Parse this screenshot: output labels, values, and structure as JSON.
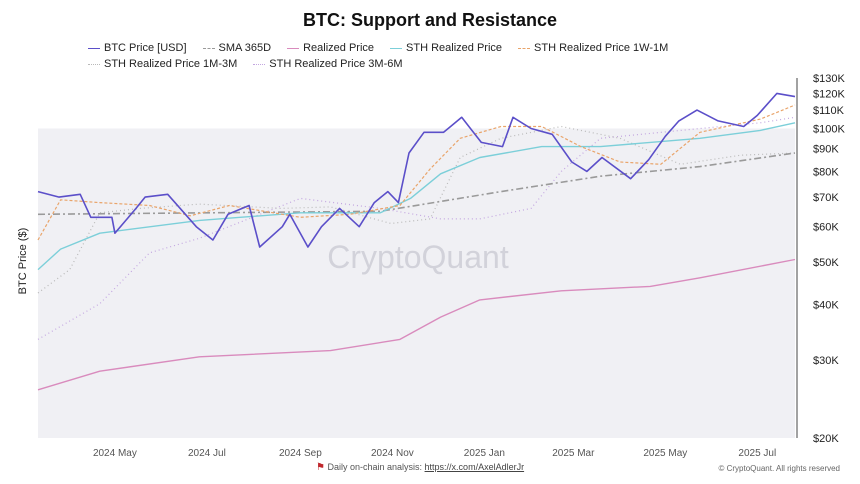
{
  "chart_data": {
    "type": "line",
    "title": "BTC: Support and Resistance",
    "ylabel": "BTC Price ($)",
    "yscale": "log",
    "ylim": [
      20000,
      130000
    ],
    "xlim": [
      "2024-03-11",
      "2025-07-26"
    ],
    "yticks": [
      20000,
      30000,
      40000,
      50000,
      60000,
      70000,
      80000,
      90000,
      100000,
      110000,
      120000,
      130000
    ],
    "ytick_labels": [
      "$20K",
      "$30K",
      "$40K",
      "$50K",
      "$60K",
      "$70K",
      "$80K",
      "$90K",
      "$100K",
      "$110K",
      "$120K",
      "$130K"
    ],
    "xticks": [
      "2024-05-01",
      "2024-07-01",
      "2024-09-01",
      "2024-11-01",
      "2025-01-01",
      "2025-03-01",
      "2025-05-01",
      "2025-07-01"
    ],
    "xtick_labels": [
      "2024 May",
      "2024 Jul",
      "2024 Sep",
      "2024 Nov",
      "2025 Jan",
      "2025 Mar",
      "2025 May",
      "2025 Jul"
    ],
    "legend_position": "top",
    "grid": false,
    "series": [
      {
        "name": "BTC Price [USD]",
        "color": "#5b4fc9",
        "style": "solid",
        "width": 1.6,
        "points": [
          [
            "2024-03-11",
            72000
          ],
          [
            "2024-03-25",
            70000
          ],
          [
            "2024-04-08",
            71000
          ],
          [
            "2024-04-15",
            63000
          ],
          [
            "2024-04-29",
            63000
          ],
          [
            "2024-05-01",
            58000
          ],
          [
            "2024-05-15",
            66000
          ],
          [
            "2024-05-21",
            70000
          ],
          [
            "2024-06-05",
            71000
          ],
          [
            "2024-06-24",
            60000
          ],
          [
            "2024-07-05",
            56000
          ],
          [
            "2024-07-15",
            64000
          ],
          [
            "2024-07-29",
            67000
          ],
          [
            "2024-08-05",
            54000
          ],
          [
            "2024-08-20",
            60000
          ],
          [
            "2024-08-25",
            64000
          ],
          [
            "2024-09-06",
            54000
          ],
          [
            "2024-09-15",
            60000
          ],
          [
            "2024-09-27",
            66000
          ],
          [
            "2024-10-10",
            60000
          ],
          [
            "2024-10-20",
            68000
          ],
          [
            "2024-10-29",
            72000
          ],
          [
            "2024-11-05",
            68000
          ],
          [
            "2024-11-12",
            88000
          ],
          [
            "2024-11-22",
            98000
          ],
          [
            "2024-12-05",
            98000
          ],
          [
            "2024-12-17",
            106000
          ],
          [
            "2024-12-30",
            93000
          ],
          [
            "2025-01-13",
            91000
          ],
          [
            "2025-01-20",
            106000
          ],
          [
            "2025-02-01",
            100000
          ],
          [
            "2025-02-15",
            97000
          ],
          [
            "2025-02-28",
            84000
          ],
          [
            "2025-03-10",
            80000
          ],
          [
            "2025-03-20",
            86000
          ],
          [
            "2025-04-08",
            77000
          ],
          [
            "2025-04-20",
            85000
          ],
          [
            "2025-05-01",
            96000
          ],
          [
            "2025-05-10",
            104000
          ],
          [
            "2025-05-22",
            110000
          ],
          [
            "2025-06-05",
            104000
          ],
          [
            "2025-06-22",
            101000
          ],
          [
            "2025-07-01",
            107000
          ],
          [
            "2025-07-14",
            120000
          ],
          [
            "2025-07-26",
            118000
          ]
        ]
      },
      {
        "name": "SMA 365D",
        "color": "#9a9a9a",
        "style": "dashdot",
        "width": 1.6,
        "points": [
          [
            "2024-03-11",
            64000
          ],
          [
            "2024-10-24",
            65000
          ],
          [
            "2025-01-12",
            72000
          ],
          [
            "2025-03-19",
            78000
          ],
          [
            "2025-05-24",
            82000
          ],
          [
            "2025-07-26",
            88000
          ]
        ]
      },
      {
        "name": "Realized Price",
        "color": "#d98bbd",
        "style": "solid",
        "width": 1.4,
        "points": [
          [
            "2024-03-11",
            25700
          ],
          [
            "2024-04-21",
            28300
          ],
          [
            "2024-06-26",
            30500
          ],
          [
            "2024-09-21",
            31500
          ],
          [
            "2024-11-06",
            33400
          ],
          [
            "2024-12-03",
            37500
          ],
          [
            "2024-12-29",
            41000
          ],
          [
            "2025-02-21",
            43000
          ],
          [
            "2025-04-21",
            44000
          ],
          [
            "2025-05-24",
            46000
          ],
          [
            "2025-07-26",
            50600
          ]
        ]
      },
      {
        "name": "STH Realized Price",
        "color": "#7ccfd9",
        "style": "solid",
        "width": 1.4,
        "points": [
          [
            "2024-03-11",
            48000
          ],
          [
            "2024-03-26",
            53400
          ],
          [
            "2024-04-21",
            58000
          ],
          [
            "2024-06-26",
            62000
          ],
          [
            "2024-09-01",
            64500
          ],
          [
            "2024-10-24",
            64500
          ],
          [
            "2024-11-13",
            69500
          ],
          [
            "2024-12-03",
            79000
          ],
          [
            "2024-12-29",
            86000
          ],
          [
            "2025-02-08",
            91000
          ],
          [
            "2025-03-19",
            91000
          ],
          [
            "2025-05-24",
            95000
          ],
          [
            "2025-07-03",
            99000
          ],
          [
            "2025-07-26",
            103000
          ]
        ]
      },
      {
        "name": "STH Realized Price 1W-1M",
        "color": "#e9a46a",
        "style": "dashed",
        "width": 1.2,
        "points": [
          [
            "2024-03-11",
            56000
          ],
          [
            "2024-03-26",
            69000
          ],
          [
            "2024-04-21",
            68000
          ],
          [
            "2024-05-24",
            67000
          ],
          [
            "2024-06-20",
            63500
          ],
          [
            "2024-07-16",
            67000
          ],
          [
            "2024-09-01",
            63000
          ],
          [
            "2024-10-04",
            64000
          ],
          [
            "2024-11-06",
            67000
          ],
          [
            "2024-11-26",
            81000
          ],
          [
            "2024-12-16",
            95000
          ],
          [
            "2025-01-12",
            101000
          ],
          [
            "2025-02-08",
            101000
          ],
          [
            "2025-03-06",
            91000
          ],
          [
            "2025-04-01",
            84000
          ],
          [
            "2025-04-28",
            83000
          ],
          [
            "2025-05-24",
            98000
          ],
          [
            "2025-07-03",
            105000
          ],
          [
            "2025-07-26",
            113000
          ]
        ]
      },
      {
        "name": "STH Realized Price 1M-3M",
        "color": "#b9b9b9",
        "style": "dotted",
        "width": 1.2,
        "points": [
          [
            "2024-03-11",
            42500
          ],
          [
            "2024-04-01",
            48000
          ],
          [
            "2024-04-21",
            64500
          ],
          [
            "2024-05-18",
            66000
          ],
          [
            "2024-06-26",
            67500
          ],
          [
            "2024-08-19",
            66000
          ],
          [
            "2024-09-21",
            66500
          ],
          [
            "2024-10-31",
            61000
          ],
          [
            "2024-11-26",
            62500
          ],
          [
            "2024-12-16",
            86000
          ],
          [
            "2025-01-12",
            95000
          ],
          [
            "2025-02-21",
            101000
          ],
          [
            "2025-04-01",
            95000
          ],
          [
            "2025-05-11",
            83000
          ],
          [
            "2025-06-20",
            87000
          ],
          [
            "2025-07-26",
            88000
          ]
        ]
      },
      {
        "name": "STH Realized Price 3M-6M",
        "color": "#c3a6e0",
        "style": "dotted",
        "width": 1.2,
        "points": [
          [
            "2024-03-11",
            33400
          ],
          [
            "2024-04-21",
            40200
          ],
          [
            "2024-05-24",
            52400
          ],
          [
            "2024-06-26",
            56500
          ],
          [
            "2024-09-01",
            69500
          ],
          [
            "2024-10-24",
            66000
          ],
          [
            "2024-12-03",
            62500
          ],
          [
            "2024-12-29",
            62500
          ],
          [
            "2025-02-01",
            66000
          ],
          [
            "2025-02-21",
            80000
          ],
          [
            "2025-03-19",
            95000
          ],
          [
            "2025-05-24",
            100000
          ],
          [
            "2025-07-03",
            103000
          ],
          [
            "2025-07-26",
            106000
          ]
        ]
      }
    ]
  },
  "watermark": "CryptoQuant",
  "footer": {
    "note": "Daily on-chain analysis:",
    "link": "https://x.com/AxelAdlerJr",
    "copyright": "© CryptoQuant. All rights reserved"
  },
  "colors": {
    "plot_bg": "#f0f0f4",
    "flag": "#c0282d"
  }
}
